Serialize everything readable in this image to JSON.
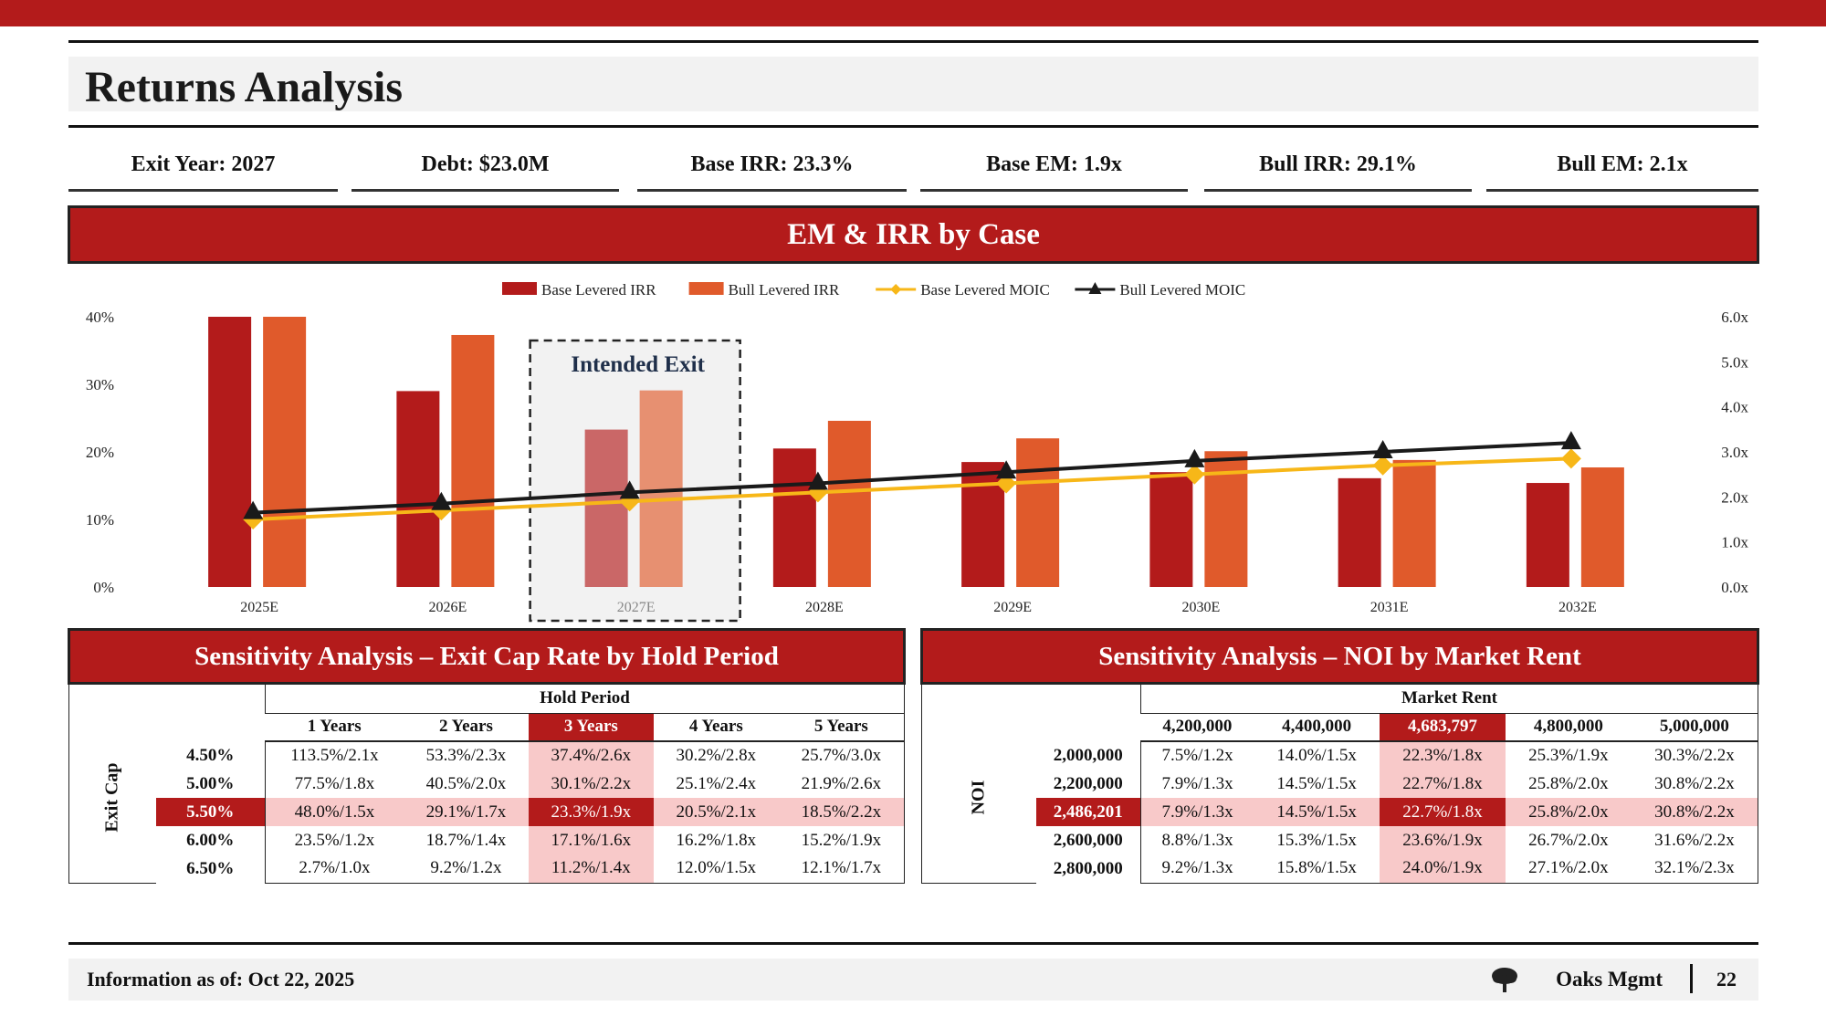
{
  "header": {
    "title": "Returns Analysis"
  },
  "kpis": [
    {
      "label": "Exit Year: 2027"
    },
    {
      "label": "Debt: $23.0M"
    },
    {
      "label": "Base IRR: 23.3%"
    },
    {
      "label": "Base EM: 1.9x"
    },
    {
      "label": "Bull IRR: 29.1%"
    },
    {
      "label": "Bull EM: 2.1x"
    }
  ],
  "sections": {
    "chart_title": "EM & IRR by Case",
    "sens_left_title": "Sensitivity Analysis – Exit Cap Rate by Hold Period",
    "sens_right_title": "Sensitivity Analysis – NOI by Market Rent"
  },
  "chart_data": {
    "type": "bar",
    "categories": [
      "2025E",
      "2026E",
      "2027E",
      "2028E",
      "2029E",
      "2030E",
      "2031E",
      "2032E"
    ],
    "series": [
      {
        "name": "Base Levered IRR",
        "kind": "bar",
        "axis": "left",
        "color": "#b31b1b",
        "values": [
          40.0,
          29.0,
          23.3,
          20.5,
          18.5,
          17.0,
          16.1,
          15.4
        ]
      },
      {
        "name": "Bull Levered IRR",
        "kind": "bar",
        "axis": "left",
        "color": "#e05a2b",
        "values": [
          40.0,
          37.3,
          29.1,
          24.6,
          22.0,
          20.1,
          18.8,
          17.7
        ]
      },
      {
        "name": "Base Levered MOIC",
        "kind": "line",
        "axis": "right",
        "color": "#f7b718",
        "marker": "diamond",
        "values": [
          1.5,
          1.7,
          1.9,
          2.1,
          2.3,
          2.5,
          2.7,
          2.85
        ]
      },
      {
        "name": "Bull Levered MOIC",
        "kind": "line",
        "axis": "right",
        "color": "#1a1a1a",
        "marker": "triangle",
        "values": [
          1.65,
          1.85,
          2.1,
          2.3,
          2.55,
          2.8,
          3.0,
          3.2
        ]
      }
    ],
    "y_left": {
      "ticks": [
        "0%",
        "10%",
        "20%",
        "30%",
        "40%"
      ],
      "range": [
        0,
        40
      ]
    },
    "y_right": {
      "ticks": [
        "0.0x",
        "1.0x",
        "2.0x",
        "3.0x",
        "4.0x",
        "5.0x",
        "6.0x"
      ],
      "range": [
        0,
        6
      ]
    },
    "highlight": {
      "category": "2027E",
      "label": "Intended Exit"
    },
    "legend_position": "top-center",
    "grid": false
  },
  "sens_left": {
    "col_axis_label": "Hold Period",
    "row_axis_label": "Exit Cap",
    "col_headers": [
      "1 Years",
      "2 Years",
      "3 Years",
      "4 Years",
      "5 Years"
    ],
    "highlight_col": 2,
    "highlight_row": 2,
    "rows": [
      {
        "label": "4.50%",
        "cells": [
          "113.5%/2.1x",
          "53.3%/2.3x",
          "37.4%/2.6x",
          "30.2%/2.8x",
          "25.7%/3.0x"
        ]
      },
      {
        "label": "5.00%",
        "cells": [
          "77.5%/1.8x",
          "40.5%/2.0x",
          "30.1%/2.2x",
          "25.1%/2.4x",
          "21.9%/2.6x"
        ]
      },
      {
        "label": "5.50%",
        "cells": [
          "48.0%/1.5x",
          "29.1%/1.7x",
          "23.3%/1.9x",
          "20.5%/2.1x",
          "18.5%/2.2x"
        ]
      },
      {
        "label": "6.00%",
        "cells": [
          "23.5%/1.2x",
          "18.7%/1.4x",
          "17.1%/1.6x",
          "16.2%/1.8x",
          "15.2%/1.9x"
        ]
      },
      {
        "label": "6.50%",
        "cells": [
          "2.7%/1.0x",
          "9.2%/1.2x",
          "11.2%/1.4x",
          "12.0%/1.5x",
          "12.1%/1.7x"
        ]
      }
    ]
  },
  "sens_right": {
    "col_axis_label": "Market Rent",
    "row_axis_label": "NOI",
    "col_headers": [
      "4,200,000",
      "4,400,000",
      "4,683,797",
      "4,800,000",
      "5,000,000"
    ],
    "highlight_col": 2,
    "highlight_row": 2,
    "rows": [
      {
        "label": "2,000,000",
        "cells": [
          "7.5%/1.2x",
          "14.0%/1.5x",
          "22.3%/1.8x",
          "25.3%/1.9x",
          "30.3%/2.2x"
        ]
      },
      {
        "label": "2,200,000",
        "cells": [
          "7.9%/1.3x",
          "14.5%/1.5x",
          "22.7%/1.8x",
          "25.8%/2.0x",
          "30.8%/2.2x"
        ]
      },
      {
        "label": "2,486,201",
        "cells": [
          "7.9%/1.3x",
          "14.5%/1.5x",
          "22.7%/1.8x",
          "25.8%/2.0x",
          "30.8%/2.2x"
        ]
      },
      {
        "label": "2,600,000",
        "cells": [
          "8.8%/1.3x",
          "15.3%/1.5x",
          "23.6%/1.9x",
          "26.7%/2.0x",
          "31.6%/2.2x"
        ]
      },
      {
        "label": "2,800,000",
        "cells": [
          "9.2%/1.3x",
          "15.8%/1.5x",
          "24.0%/1.9x",
          "27.1%/2.0x",
          "32.1%/2.3x"
        ]
      }
    ]
  },
  "footer": {
    "info": "Information as of: Oct 22, 2025",
    "brand": "Oaks Mgmt",
    "brand_icon": "tree-icon",
    "page": "22"
  },
  "colors": {
    "accent": "#b31b1b",
    "accent_light": "#f8c9c9",
    "bull": "#e05a2b",
    "base_line": "#f7b718"
  }
}
